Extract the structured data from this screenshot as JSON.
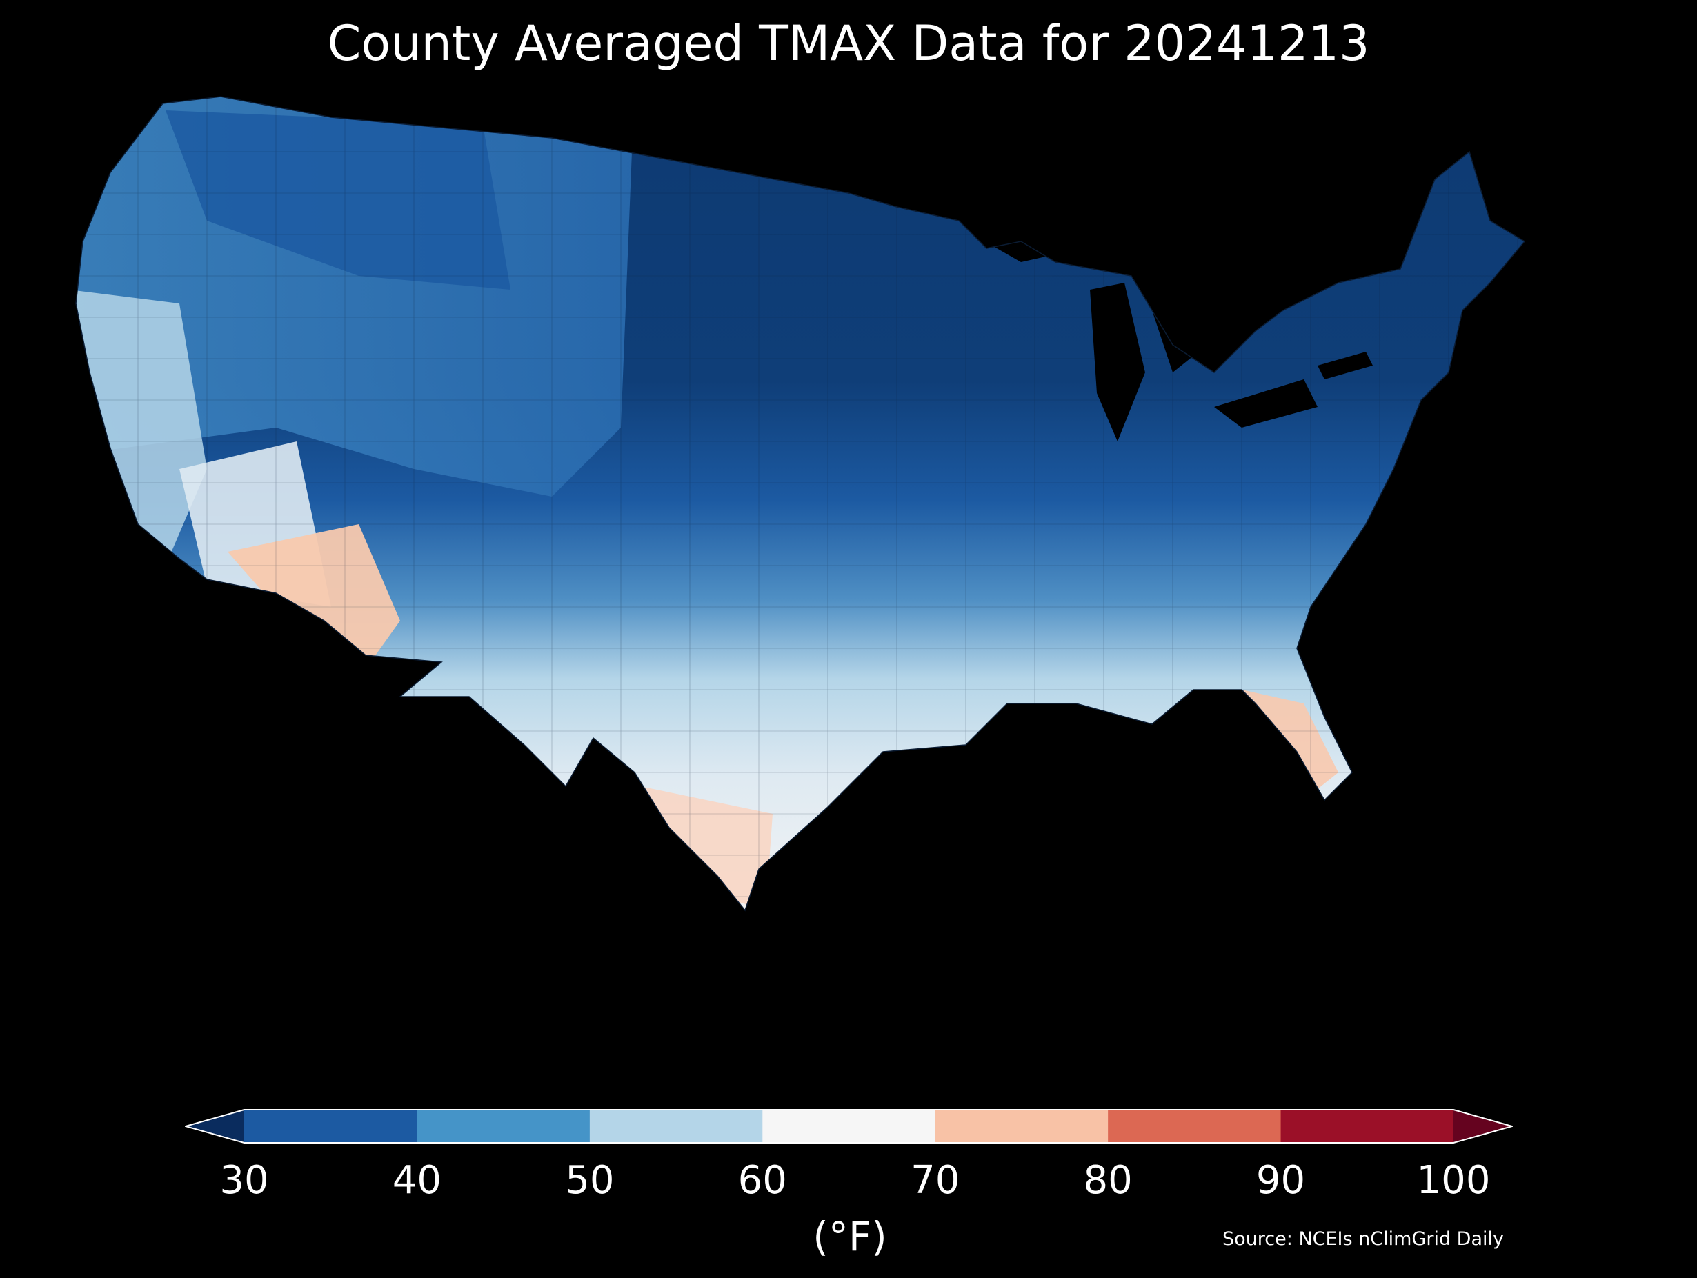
{
  "title": "County Averaged TMAX Data for 20241213",
  "colorbar": {
    "unit_label": "(°F)",
    "ticks": [
      "30",
      "40",
      "50",
      "60",
      "70",
      "80",
      "90",
      "100"
    ],
    "bins": [
      {
        "range": [
          30,
          40
        ],
        "color": "#1c5aa2"
      },
      {
        "range": [
          40,
          50
        ],
        "color": "#4594c8"
      },
      {
        "range": [
          50,
          60
        ],
        "color": "#b4d5e8"
      },
      {
        "range": [
          60,
          70
        ],
        "color": "#f6f6f6"
      },
      {
        "range": [
          70,
          80
        ],
        "color": "#f8c2a6"
      },
      {
        "range": [
          80,
          90
        ],
        "color": "#dc6853"
      },
      {
        "range": [
          90,
          100
        ],
        "color": "#9b1028"
      }
    ],
    "under_color": "#0a2c5e",
    "over_color": "#65031f"
  },
  "source": "Source: NCEIs nClimGrid Daily",
  "colors": {
    "background": "#000000",
    "text": "#ffffff"
  }
}
